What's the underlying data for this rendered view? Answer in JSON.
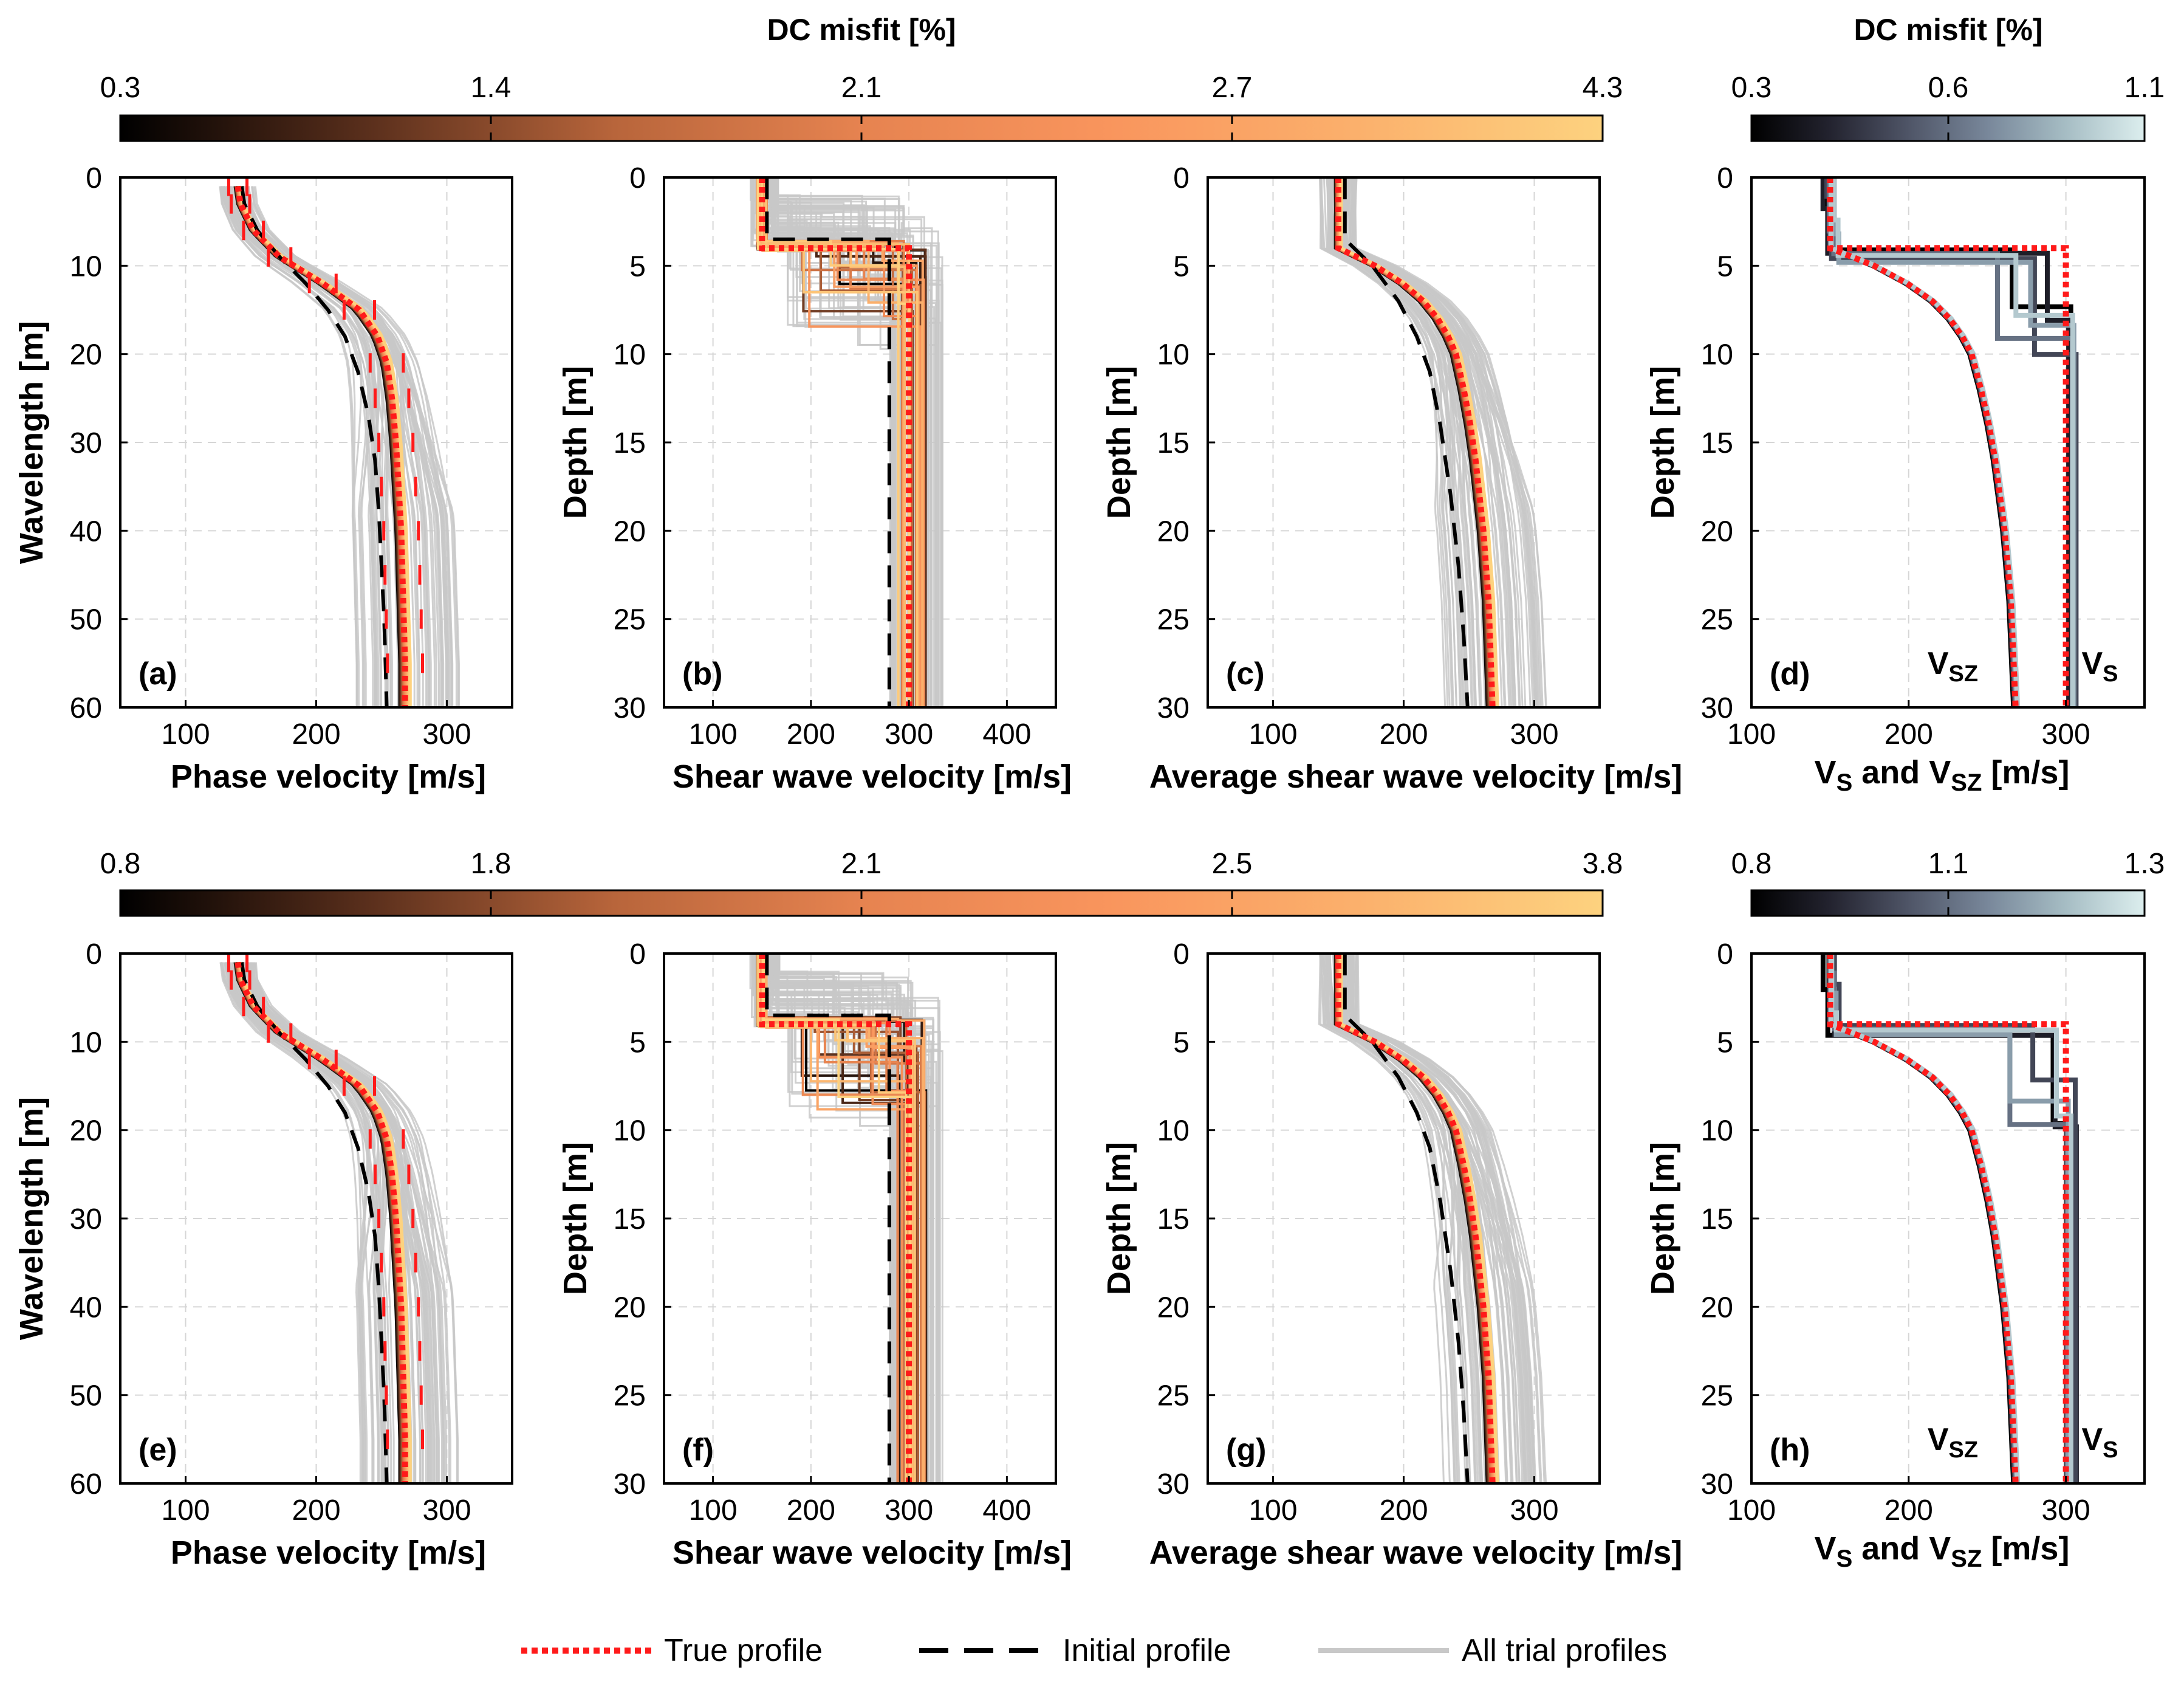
{
  "colors": {
    "true_profile": "#ff1a1a",
    "initial_profile": "#000000",
    "trial_profiles": "#c8c8c8",
    "grid": "#d6d6d6",
    "copper_stops": [
      "#000000",
      "#5a2f1c",
      "#b8653b",
      "#e68350",
      "#f9955d",
      "#fbb06c",
      "#fdd27f"
    ],
    "bone_stops": [
      "#000000",
      "#23232f",
      "#4f5567",
      "#78879a",
      "#a6bdc4",
      "#dceeee"
    ]
  },
  "legend": {
    "true_profile": "True profile",
    "initial_profile": "Initial profile",
    "all_trial_profiles": "All trial profiles"
  },
  "rows": [
    {
      "main_colorbar": {
        "title": "DC misfit [%]",
        "ticks": [
          "0.3",
          "1.4",
          "2.1",
          "2.7",
          "4.3"
        ]
      },
      "side_colorbar": {
        "title": "DC misfit [%]",
        "ticks": [
          "0.3",
          "0.6",
          "1.1"
        ]
      }
    },
    {
      "main_colorbar": {
        "title": "",
        "ticks": [
          "0.8",
          "1.8",
          "2.1",
          "2.5",
          "3.8"
        ]
      },
      "side_colorbar": {
        "title": "",
        "ticks": [
          "0.8",
          "1.1",
          "1.3"
        ]
      }
    }
  ],
  "chart_data": [
    {
      "panel": "a",
      "label": "(a)",
      "type": "line",
      "xlabel": "Phase velocity [m/s]",
      "ylabel": "Wavelength [m]",
      "xlim": [
        50,
        350
      ],
      "ylim": [
        0,
        60
      ],
      "xticks": [
        100,
        200,
        300
      ],
      "yticks": [
        0,
        10,
        20,
        30,
        40,
        50,
        60
      ]
    },
    {
      "panel": "b",
      "label": "(b)",
      "type": "line",
      "xlabel": "Shear wave velocity [m/s]",
      "ylabel": "Depth [m]",
      "xlim": [
        50,
        450
      ],
      "ylim": [
        0,
        30
      ],
      "xticks": [
        100,
        200,
        300,
        400
      ],
      "yticks": [
        0,
        5,
        10,
        15,
        20,
        25,
        30
      ]
    },
    {
      "panel": "c",
      "label": "(c)",
      "type": "line",
      "xlabel": "Average shear wave velocity [m/s]",
      "ylabel": "Depth [m]",
      "xlim": [
        50,
        350
      ],
      "ylim": [
        0,
        30
      ],
      "xticks": [
        100,
        200,
        300
      ],
      "yticks": [
        0,
        5,
        10,
        15,
        20,
        25,
        30
      ]
    },
    {
      "panel": "d",
      "label": "(d)",
      "type": "line",
      "xlabel": "V_S and V_SZ [m/s]",
      "ylabel": "Depth [m]",
      "xlim": [
        100,
        350
      ],
      "ylim": [
        0,
        30
      ],
      "xticks": [
        100,
        200,
        300
      ],
      "yticks": [
        0,
        5,
        10,
        15,
        20,
        25,
        30
      ],
      "annotations": [
        "VSZ",
        "VS"
      ]
    },
    {
      "panel": "e",
      "label": "(e)",
      "type": "line",
      "xlabel": "Phase velocity [m/s]",
      "ylabel": "Wavelength [m]",
      "xlim": [
        50,
        350
      ],
      "ylim": [
        0,
        60
      ],
      "xticks": [
        100,
        200,
        300
      ],
      "yticks": [
        0,
        10,
        20,
        30,
        40,
        50,
        60
      ]
    },
    {
      "panel": "f",
      "label": "(f)",
      "type": "line",
      "xlabel": "Shear wave velocity [m/s]",
      "ylabel": "Depth [m]",
      "xlim": [
        50,
        450
      ],
      "ylim": [
        0,
        30
      ],
      "xticks": [
        100,
        200,
        300,
        400
      ],
      "yticks": [
        0,
        5,
        10,
        15,
        20,
        25,
        30
      ]
    },
    {
      "panel": "g",
      "label": "(g)",
      "type": "line",
      "xlabel": "Average shear wave velocity [m/s]",
      "ylabel": "Depth [m]",
      "xlim": [
        50,
        350
      ],
      "ylim": [
        0,
        30
      ],
      "xticks": [
        100,
        200,
        300
      ],
      "yticks": [
        0,
        5,
        10,
        15,
        20,
        25,
        30
      ]
    },
    {
      "panel": "h",
      "label": "(h)",
      "type": "line",
      "xlabel": "V_S and V_SZ [m/s]",
      "ylabel": "Depth [m]",
      "xlim": [
        100,
        350
      ],
      "ylim": [
        0,
        30
      ],
      "xticks": [
        100,
        200,
        300
      ],
      "yticks": [
        0,
        5,
        10,
        15,
        20,
        25,
        30
      ],
      "annotations": [
        "VSZ",
        "VS"
      ]
    }
  ],
  "profiles": {
    "true_vs": [
      [
        150,
        0
      ],
      [
        150,
        4
      ],
      [
        300,
        4
      ],
      [
        300,
        30
      ]
    ],
    "initial_vs": [
      [
        155,
        0
      ],
      [
        155,
        3.5
      ],
      [
        280,
        3.5
      ],
      [
        280,
        30
      ]
    ],
    "true_vsz": [
      [
        150,
        0
      ],
      [
        150,
        1
      ],
      [
        150,
        2
      ],
      [
        150,
        3
      ],
      [
        150,
        4
      ],
      [
        178,
        5
      ],
      [
        199,
        6
      ],
      [
        215,
        7
      ],
      [
        226,
        8
      ],
      [
        234,
        9
      ],
      [
        240,
        10
      ],
      [
        246,
        12
      ],
      [
        251,
        14
      ],
      [
        255,
        16
      ],
      [
        258,
        18
      ],
      [
        261,
        20
      ],
      [
        263,
        22
      ],
      [
        265,
        24
      ],
      [
        266,
        26
      ],
      [
        267,
        28
      ],
      [
        268,
        30
      ]
    ],
    "initial_vsz": [
      [
        155,
        0
      ],
      [
        155,
        3.5
      ],
      [
        176,
        5
      ],
      [
        196,
        7
      ],
      [
        210,
        9
      ],
      [
        220,
        11
      ],
      [
        228,
        14
      ],
      [
        236,
        18
      ],
      [
        242,
        22
      ],
      [
        246,
        26
      ],
      [
        249,
        30
      ]
    ],
    "true_dc": [
      [
        140,
        1
      ],
      [
        142,
        3
      ],
      [
        152,
        6
      ],
      [
        172,
        9
      ],
      [
        205,
        12
      ],
      [
        233,
        15
      ],
      [
        247,
        18
      ],
      [
        254,
        21
      ],
      [
        258,
        25
      ],
      [
        261,
        30
      ],
      [
        263,
        35
      ],
      [
        265,
        40
      ],
      [
        266,
        45
      ],
      [
        267,
        50
      ],
      [
        268,
        55
      ],
      [
        268,
        60
      ]
    ],
    "initial_dc": [
      [
        143,
        1
      ],
      [
        145,
        3
      ],
      [
        155,
        6
      ],
      [
        172,
        9
      ],
      [
        192,
        12
      ],
      [
        209,
        15
      ],
      [
        222,
        18
      ],
      [
        232,
        22
      ],
      [
        240,
        27
      ],
      [
        245,
        32
      ],
      [
        248,
        38
      ],
      [
        250,
        44
      ],
      [
        252,
        50
      ],
      [
        253,
        55
      ],
      [
        254,
        60
      ]
    ],
    "dc_error_bars": [
      [
        140,
        1
      ],
      [
        142,
        3
      ],
      [
        152,
        6
      ],
      [
        172,
        9
      ],
      [
        205,
        12
      ],
      [
        233,
        15
      ],
      [
        254,
        21
      ],
      [
        258,
        25
      ],
      [
        261,
        30
      ],
      [
        263,
        35
      ],
      [
        265,
        40
      ],
      [
        266,
        45
      ],
      [
        267,
        50
      ],
      [
        268,
        55
      ]
    ]
  }
}
